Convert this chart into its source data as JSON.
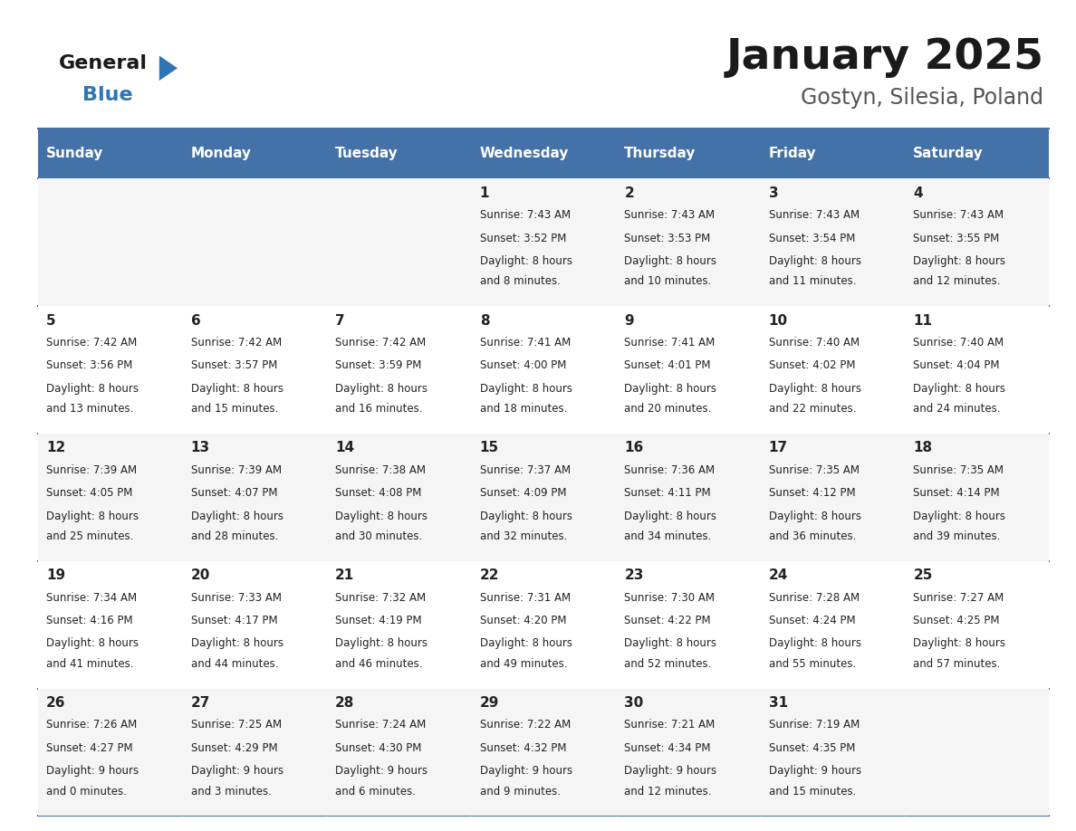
{
  "title": "January 2025",
  "subtitle": "Gostyn, Silesia, Poland",
  "days_of_week": [
    "Sunday",
    "Monday",
    "Tuesday",
    "Wednesday",
    "Thursday",
    "Friday",
    "Saturday"
  ],
  "header_bg": "#4472A8",
  "header_text": "#FFFFFF",
  "cell_bg_even": "#F5F5F5",
  "cell_bg_odd": "#FFFFFF",
  "border_color": "#4472A8",
  "text_color": "#222222",
  "calendar": [
    [
      null,
      null,
      null,
      {
        "day": 1,
        "sunrise": "7:43 AM",
        "sunset": "3:52 PM",
        "daylight": "8 hours and 8 minutes."
      },
      {
        "day": 2,
        "sunrise": "7:43 AM",
        "sunset": "3:53 PM",
        "daylight": "8 hours and 10 minutes."
      },
      {
        "day": 3,
        "sunrise": "7:43 AM",
        "sunset": "3:54 PM",
        "daylight": "8 hours and 11 minutes."
      },
      {
        "day": 4,
        "sunrise": "7:43 AM",
        "sunset": "3:55 PM",
        "daylight": "8 hours and 12 minutes."
      }
    ],
    [
      {
        "day": 5,
        "sunrise": "7:42 AM",
        "sunset": "3:56 PM",
        "daylight": "8 hours and 13 minutes."
      },
      {
        "day": 6,
        "sunrise": "7:42 AM",
        "sunset": "3:57 PM",
        "daylight": "8 hours and 15 minutes."
      },
      {
        "day": 7,
        "sunrise": "7:42 AM",
        "sunset": "3:59 PM",
        "daylight": "8 hours and 16 minutes."
      },
      {
        "day": 8,
        "sunrise": "7:41 AM",
        "sunset": "4:00 PM",
        "daylight": "8 hours and 18 minutes."
      },
      {
        "day": 9,
        "sunrise": "7:41 AM",
        "sunset": "4:01 PM",
        "daylight": "8 hours and 20 minutes."
      },
      {
        "day": 10,
        "sunrise": "7:40 AM",
        "sunset": "4:02 PM",
        "daylight": "8 hours and 22 minutes."
      },
      {
        "day": 11,
        "sunrise": "7:40 AM",
        "sunset": "4:04 PM",
        "daylight": "8 hours and 24 minutes."
      }
    ],
    [
      {
        "day": 12,
        "sunrise": "7:39 AM",
        "sunset": "4:05 PM",
        "daylight": "8 hours and 25 minutes."
      },
      {
        "day": 13,
        "sunrise": "7:39 AM",
        "sunset": "4:07 PM",
        "daylight": "8 hours and 28 minutes."
      },
      {
        "day": 14,
        "sunrise": "7:38 AM",
        "sunset": "4:08 PM",
        "daylight": "8 hours and 30 minutes."
      },
      {
        "day": 15,
        "sunrise": "7:37 AM",
        "sunset": "4:09 PM",
        "daylight": "8 hours and 32 minutes."
      },
      {
        "day": 16,
        "sunrise": "7:36 AM",
        "sunset": "4:11 PM",
        "daylight": "8 hours and 34 minutes."
      },
      {
        "day": 17,
        "sunrise": "7:35 AM",
        "sunset": "4:12 PM",
        "daylight": "8 hours and 36 minutes."
      },
      {
        "day": 18,
        "sunrise": "7:35 AM",
        "sunset": "4:14 PM",
        "daylight": "8 hours and 39 minutes."
      }
    ],
    [
      {
        "day": 19,
        "sunrise": "7:34 AM",
        "sunset": "4:16 PM",
        "daylight": "8 hours and 41 minutes."
      },
      {
        "day": 20,
        "sunrise": "7:33 AM",
        "sunset": "4:17 PM",
        "daylight": "8 hours and 44 minutes."
      },
      {
        "day": 21,
        "sunrise": "7:32 AM",
        "sunset": "4:19 PM",
        "daylight": "8 hours and 46 minutes."
      },
      {
        "day": 22,
        "sunrise": "7:31 AM",
        "sunset": "4:20 PM",
        "daylight": "8 hours and 49 minutes."
      },
      {
        "day": 23,
        "sunrise": "7:30 AM",
        "sunset": "4:22 PM",
        "daylight": "8 hours and 52 minutes."
      },
      {
        "day": 24,
        "sunrise": "7:28 AM",
        "sunset": "4:24 PM",
        "daylight": "8 hours and 55 minutes."
      },
      {
        "day": 25,
        "sunrise": "7:27 AM",
        "sunset": "4:25 PM",
        "daylight": "8 hours and 57 minutes."
      }
    ],
    [
      {
        "day": 26,
        "sunrise": "7:26 AM",
        "sunset": "4:27 PM",
        "daylight": "9 hours and 0 minutes."
      },
      {
        "day": 27,
        "sunrise": "7:25 AM",
        "sunset": "4:29 PM",
        "daylight": "9 hours and 3 minutes."
      },
      {
        "day": 28,
        "sunrise": "7:24 AM",
        "sunset": "4:30 PM",
        "daylight": "9 hours and 6 minutes."
      },
      {
        "day": 29,
        "sunrise": "7:22 AM",
        "sunset": "4:32 PM",
        "daylight": "9 hours and 9 minutes."
      },
      {
        "day": 30,
        "sunrise": "7:21 AM",
        "sunset": "4:34 PM",
        "daylight": "9 hours and 12 minutes."
      },
      {
        "day": 31,
        "sunrise": "7:19 AM",
        "sunset": "4:35 PM",
        "daylight": "9 hours and 15 minutes."
      },
      null
    ]
  ],
  "logo_general_color": "#1a1a1a",
  "logo_blue_color": "#2E75B6",
  "title_color": "#1a1a1a",
  "subtitle_color": "#555555"
}
